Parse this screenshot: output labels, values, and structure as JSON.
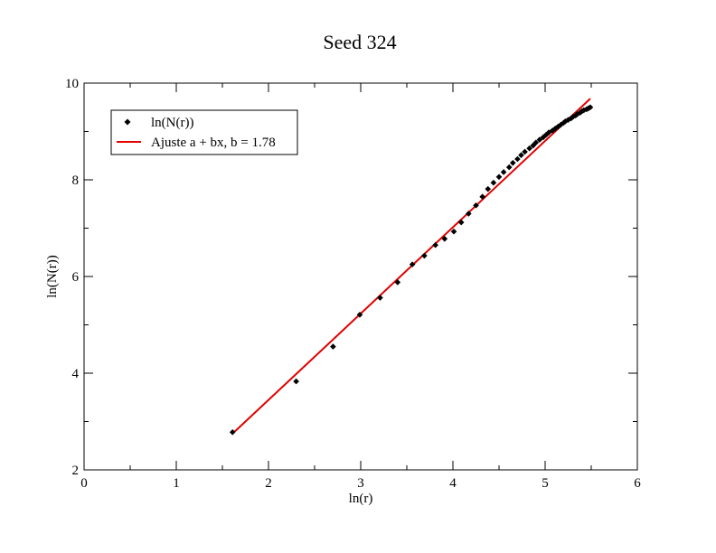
{
  "chart_data": {
    "type": "scatter",
    "title": "Seed 324",
    "xlabel": "ln(r)",
    "ylabel": "ln(N(r))",
    "xlim": [
      0,
      6
    ],
    "ylim": [
      2,
      10
    ],
    "xticks": [
      0,
      1,
      2,
      3,
      4,
      5,
      6
    ],
    "yticks": [
      2,
      4,
      6,
      8,
      10
    ],
    "grid": false,
    "legend_position": "top-left",
    "series": [
      {
        "name": "ln(N(r))",
        "kind": "scatter",
        "marker": "diamond",
        "color": "#000000",
        "x": [
          1.61,
          2.3,
          2.7,
          2.99,
          3.21,
          3.4,
          3.56,
          3.69,
          3.81,
          3.91,
          4.01,
          4.09,
          4.17,
          4.25,
          4.32,
          4.38,
          4.44,
          4.5,
          4.55,
          4.61,
          4.65,
          4.7,
          4.74,
          4.78,
          4.83,
          4.87,
          4.9,
          4.94,
          4.98,
          5.01,
          5.04,
          5.08,
          5.11,
          5.14,
          5.17,
          5.2,
          5.22,
          5.25,
          5.28,
          5.3,
          5.33,
          5.35,
          5.38,
          5.4,
          5.42,
          5.45,
          5.47,
          5.49
        ],
        "y": [
          2.78,
          3.83,
          4.55,
          5.21,
          5.56,
          5.88,
          6.25,
          6.43,
          6.65,
          6.78,
          6.93,
          7.12,
          7.3,
          7.47,
          7.65,
          7.81,
          7.94,
          8.06,
          8.16,
          8.26,
          8.35,
          8.43,
          8.51,
          8.58,
          8.65,
          8.71,
          8.77,
          8.83,
          8.88,
          8.93,
          8.98,
          9.02,
          9.06,
          9.1,
          9.14,
          9.18,
          9.21,
          9.24,
          9.27,
          9.3,
          9.33,
          9.36,
          9.39,
          9.42,
          9.44,
          9.46,
          9.48,
          9.5
        ]
      },
      {
        "name": "Ajuste a + bx, b = 1.78",
        "kind": "line",
        "color": "#e00000",
        "x": [
          1.61,
          5.49
        ],
        "y": [
          2.75,
          9.68
        ]
      }
    ]
  }
}
